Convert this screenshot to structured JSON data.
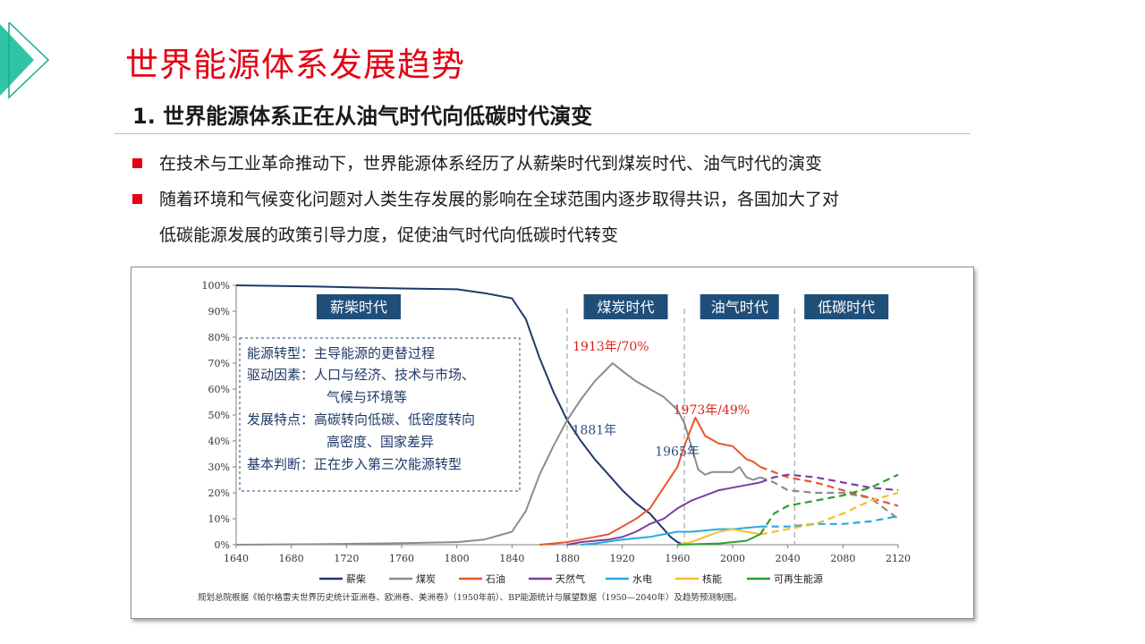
{
  "header": {
    "title": "世界能源体系发展趋势",
    "subtitle": "1. 世界能源体系正在从油气时代向低碳时代演变"
  },
  "bullets": [
    "在技术与工业革命推动下，世界能源体系经历了从薪柴时代到煤炭时代、油气时代的演变",
    "随着环境和气候变化问题对人类生存发展的影响在全球范围内逐步取得共识，各国加大了对",
    "低碳能源发展的政策引导力度，促使油气时代向低碳时代转变"
  ],
  "chart_data": {
    "type": "line",
    "xlim": [
      1640,
      2120
    ],
    "ylim": [
      0,
      100
    ],
    "x_ticks": [
      "1640",
      "1680",
      "1720",
      "1760",
      "1800",
      "1840",
      "1880",
      "1920",
      "1960",
      "2000",
      "2040",
      "2080",
      "2120"
    ],
    "y_ticks": [
      "0%",
      "10%",
      "20%",
      "30%",
      "40%",
      "50%",
      "60%",
      "70%",
      "80%",
      "90%",
      "100%"
    ],
    "eras": [
      {
        "label": "薪柴时代",
        "start": 1640,
        "end": 1880
      },
      {
        "label": "煤炭时代",
        "start": 1880,
        "end": 1965
      },
      {
        "label": "油气时代",
        "start": 1965,
        "end": 2045
      },
      {
        "label": "低碳时代",
        "start": 2045,
        "end": 2120
      }
    ],
    "era_dividers": [
      1880,
      1965,
      2045
    ],
    "annotations": [
      {
        "text": "1913年/70%",
        "x": 1913,
        "y": 70,
        "color": "#e02020"
      },
      {
        "text": "1973年/49%",
        "x": 1973,
        "y": 49,
        "color": "#e02020"
      },
      {
        "text": "1881年",
        "x": 1881,
        "y": 46,
        "color": "#2f4f7f"
      },
      {
        "text": "1965年",
        "x": 1965,
        "y": 37,
        "color": "#2f4f7f"
      }
    ],
    "info_box": [
      "能源转型：主导能源的更替过程",
      "驱动因素：人口与经济、技术与市场、",
      "气候与环境等",
      "发展特点：高碳转向低碳、低密度转向",
      "高密度、国家差异",
      "基本判断：正在步入第三次能源转型"
    ],
    "series": [
      {
        "name": "薪柴",
        "color": "#1f3a68",
        "x": [
          1640,
          1700,
          1760,
          1800,
          1820,
          1840,
          1850,
          1860,
          1870,
          1880,
          1890,
          1900,
          1910,
          1920,
          1930,
          1940,
          1950,
          1955,
          1960,
          1965
        ],
        "y": [
          100,
          99.5,
          98.8,
          98.5,
          97,
          95,
          87,
          72,
          59,
          48,
          40,
          33,
          27,
          21,
          16,
          12,
          6,
          3,
          1,
          0
        ],
        "projected_from": null
      },
      {
        "name": "煤炭",
        "color": "#8c8c8c",
        "x": [
          1640,
          1700,
          1760,
          1800,
          1820,
          1840,
          1850,
          1860,
          1870,
          1880,
          1890,
          1900,
          1913,
          1920,
          1930,
          1940,
          1950,
          1960,
          1965,
          1970,
          1975,
          1980,
          1985,
          1990,
          2000,
          2005,
          2010,
          2015,
          2020,
          2030,
          2040,
          2060,
          2080,
          2100,
          2120
        ],
        "y": [
          0,
          0.2,
          0.6,
          1,
          2,
          5,
          13,
          27,
          38,
          48,
          56,
          63,
          70,
          67,
          63,
          60,
          57,
          52,
          47,
          38,
          29,
          27,
          28,
          28,
          28,
          30,
          26,
          25,
          26,
          24,
          21,
          20,
          20,
          18,
          10
        ],
        "projected_from": 2020
      },
      {
        "name": "石油",
        "color": "#e8562a",
        "x": [
          1860,
          1870,
          1880,
          1890,
          1900,
          1910,
          1920,
          1930,
          1940,
          1950,
          1960,
          1965,
          1970,
          1973,
          1980,
          1990,
          2000,
          2010,
          2015,
          2020,
          2030,
          2040,
          2060,
          2080,
          2100,
          2120
        ],
        "y": [
          0,
          0.5,
          1,
          2,
          3,
          4,
          7,
          10,
          14,
          22,
          30,
          38,
          45,
          49,
          42,
          39,
          38,
          33,
          32,
          30,
          28,
          26,
          24,
          21,
          18,
          15
        ],
        "projected_from": 2020
      },
      {
        "name": "天然气",
        "color": "#7b3fa0",
        "x": [
          1880,
          1890,
          1900,
          1910,
          1920,
          1930,
          1940,
          1950,
          1960,
          1970,
          1980,
          1990,
          2000,
          2010,
          2020,
          2030,
          2040,
          2060,
          2080,
          2100,
          2120
        ],
        "y": [
          0,
          1,
          1.5,
          2,
          3,
          5,
          8,
          10,
          14,
          17,
          19,
          21,
          22,
          23,
          24,
          26,
          27,
          26,
          24,
          22,
          21
        ],
        "projected_from": 2020
      },
      {
        "name": "水电",
        "color": "#2aa9e0",
        "x": [
          1890,
          1900,
          1920,
          1940,
          1950,
          1960,
          1970,
          1980,
          1990,
          2000,
          2010,
          2020,
          2040,
          2060,
          2080,
          2100,
          2120
        ],
        "y": [
          0,
          0.5,
          2,
          3,
          4,
          5,
          5,
          5.5,
          6,
          6,
          6.5,
          7,
          7,
          8,
          8,
          9,
          11
        ],
        "projected_from": 2020
      },
      {
        "name": "核能",
        "color": "#f2c02a",
        "x": [
          1960,
          1970,
          1980,
          1990,
          2000,
          2010,
          2020,
          2040,
          2060,
          2080,
          2100,
          2120
        ],
        "y": [
          0,
          1,
          3,
          5,
          6,
          5,
          4,
          6,
          8,
          12,
          17,
          20
        ],
        "projected_from": 2020
      },
      {
        "name": "可再生能源",
        "color": "#2e9e2e",
        "x": [
          1960,
          1990,
          2000,
          2010,
          2020,
          2030,
          2040,
          2060,
          2080,
          2100,
          2120
        ],
        "y": [
          0,
          0.5,
          1,
          1.5,
          4,
          12,
          15,
          17,
          19,
          22,
          27
        ],
        "projected_from": 2020
      }
    ],
    "source_note": "规划总院根据《帕尔格雷夫世界历史统计亚洲卷、欧洲卷、美洲卷》（1950年前）、BP能源统计与展望数据（1950—2040年）及趋势预测制图。"
  }
}
